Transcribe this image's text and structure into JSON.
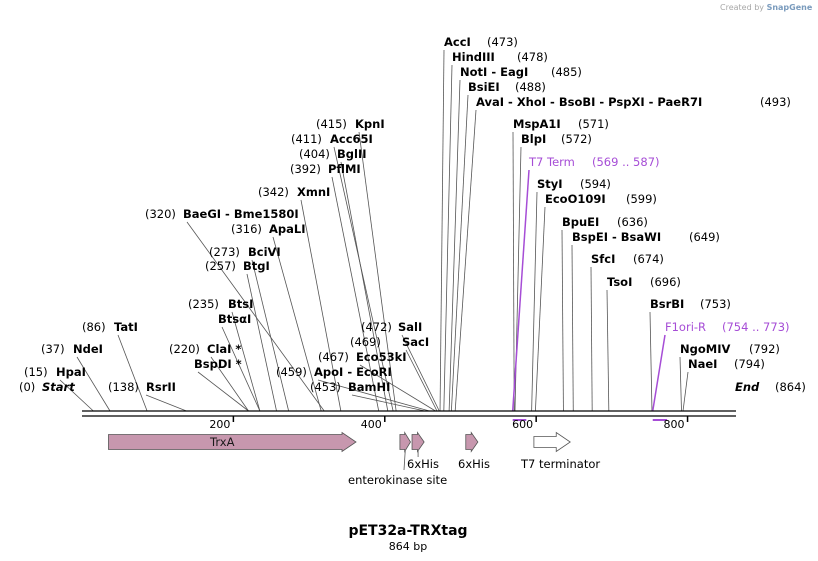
{
  "credit": {
    "prefix": "Created by",
    "brand": "SnapGene"
  },
  "title": "pET32a-TRXtag",
  "length_label": "864 bp",
  "total_bp": 864,
  "axis_ticks": [
    200,
    400,
    600,
    800
  ],
  "sites": [
    {
      "name": "Start",
      "pos": "(0)",
      "bp": 0,
      "italic": true,
      "side": "right"
    },
    {
      "name": "HpaI",
      "pos": "(15)",
      "bp": 15,
      "side": "right"
    },
    {
      "name": "NdeI",
      "pos": "(37)",
      "bp": 37,
      "side": "right"
    },
    {
      "name": "TatI",
      "pos": "(86)",
      "bp": 86,
      "side": "right"
    },
    {
      "name": "RsrII",
      "pos": "(138)",
      "bp": 138,
      "side": "right"
    },
    {
      "name": "ClaI *",
      "pos": "(220)",
      "bp": 220,
      "side": "right"
    },
    {
      "name": "BspDI *",
      "pos": "",
      "bp": 220,
      "side": "right"
    },
    {
      "name": "BtsI",
      "pos": "(235)",
      "bp": 235,
      "side": "right"
    },
    {
      "name": "BtsαI",
      "pos": "",
      "bp": 235,
      "side": "right"
    },
    {
      "name": "BtgI",
      "pos": "(257)",
      "bp": 257,
      "side": "right"
    },
    {
      "name": "BciVI",
      "pos": "(273)",
      "bp": 273,
      "side": "right"
    },
    {
      "name": "ApaLI",
      "pos": "(316)",
      "bp": 316,
      "side": "right"
    },
    {
      "name": "BaeGI",
      "pos": "(320)",
      "bp": 320,
      "side": "right"
    },
    {
      "name": "Bme1580I",
      "pos": "",
      "bp": 320,
      "side": "right"
    },
    {
      "name": "XmnI",
      "pos": "(342)",
      "bp": 342,
      "side": "right"
    },
    {
      "name": "PflMI",
      "pos": "(392)",
      "bp": 392,
      "side": "right"
    },
    {
      "name": "BglII",
      "pos": "(404)",
      "bp": 404,
      "side": "right"
    },
    {
      "name": "Acc65I",
      "pos": "(411)",
      "bp": 411,
      "side": "right"
    },
    {
      "name": "KpnI",
      "pos": "(415)",
      "bp": 415,
      "side": "right"
    },
    {
      "name": "ApoI",
      "pos": "(459)",
      "bp": 459,
      "side": "left"
    },
    {
      "name": "EcoRI",
      "pos": "",
      "bp": 459,
      "side": "left"
    },
    {
      "name": "BamHI",
      "pos": "(453)",
      "bp": 453,
      "side": "left"
    },
    {
      "name": "Eco53kI",
      "pos": "(467)",
      "bp": 467,
      "side": "left"
    },
    {
      "name": "SacI",
      "pos": "(469)",
      "bp": 469,
      "side": "left"
    },
    {
      "name": "SalI",
      "pos": "(472)",
      "bp": 472,
      "side": "left"
    },
    {
      "name": "AccI",
      "pos": "(473)",
      "bp": 473,
      "side": "left"
    },
    {
      "name": "HindIII",
      "pos": "(478)",
      "bp": 478,
      "side": "left"
    },
    {
      "name": "NotI",
      "pos": "(485)",
      "bp": 485,
      "side": "left"
    },
    {
      "name": "EagI",
      "pos": "",
      "bp": 485,
      "side": "left"
    },
    {
      "name": "BsiEI",
      "pos": "(488)",
      "bp": 488,
      "side": "left"
    },
    {
      "name": "AvaI",
      "pos": "(493)",
      "bp": 493,
      "side": "left"
    },
    {
      "name": "XhoI",
      "pos": "",
      "bp": 493,
      "side": "left"
    },
    {
      "name": "BsoBI",
      "pos": "",
      "bp": 493,
      "side": "left"
    },
    {
      "name": "PspXI",
      "pos": "",
      "bp": 493,
      "side": "left"
    },
    {
      "name": "PaeR7I",
      "pos": "",
      "bp": 493,
      "side": "left"
    },
    {
      "name": "MspA1I",
      "pos": "(571)",
      "bp": 571,
      "side": "left"
    },
    {
      "name": "BlpI",
      "pos": "(572)",
      "bp": 572,
      "side": "left"
    },
    {
      "name": "StyI",
      "pos": "(594)",
      "bp": 594,
      "side": "left"
    },
    {
      "name": "EcoO109I",
      "pos": "(599)",
      "bp": 599,
      "side": "left"
    },
    {
      "name": "BpuEI",
      "pos": "(636)",
      "bp": 636,
      "side": "left"
    },
    {
      "name": "BspEI",
      "pos": "(649)",
      "bp": 649,
      "side": "left"
    },
    {
      "name": "BsaWI",
      "pos": "",
      "bp": 649,
      "side": "left"
    },
    {
      "name": "SfcI",
      "pos": "(674)",
      "bp": 674,
      "side": "left"
    },
    {
      "name": "TsoI",
      "pos": "(696)",
      "bp": 696,
      "side": "left"
    },
    {
      "name": "BsrBI",
      "pos": "(753)",
      "bp": 753,
      "side": "left"
    },
    {
      "name": "NgoMIV",
      "pos": "(792)",
      "bp": 792,
      "side": "left"
    },
    {
      "name": "NaeI",
      "pos": "(794)",
      "bp": 794,
      "side": "left"
    },
    {
      "name": "End",
      "pos": "(864)",
      "bp": 864,
      "italic": true,
      "side": "left"
    }
  ],
  "primers": [
    {
      "name": "T7 Term",
      "pos": "(569 .. 587)",
      "start": 569,
      "end": 587,
      "color": "#a64dd6"
    },
    {
      "name": "F1ori-R",
      "pos": "(754 .. 773)",
      "start": 754,
      "end": 773,
      "color": "#a64dd6"
    }
  ],
  "features": [
    {
      "name": "TrxA",
      "start": 35,
      "end": 362,
      "color": "#c797ae",
      "label_inside": true
    },
    {
      "name": "enterokinase site",
      "start": 420,
      "end": 434,
      "color": "#c797ae"
    },
    {
      "name": "6xHis",
      "start": 436,
      "end": 452,
      "color": "#c797ae"
    },
    {
      "name": "6xHis",
      "start": 507,
      "end": 523,
      "color": "#c797ae"
    },
    {
      "name": "T7 terminator",
      "start": 597,
      "end": 645,
      "color": "#ffffff"
    }
  ]
}
